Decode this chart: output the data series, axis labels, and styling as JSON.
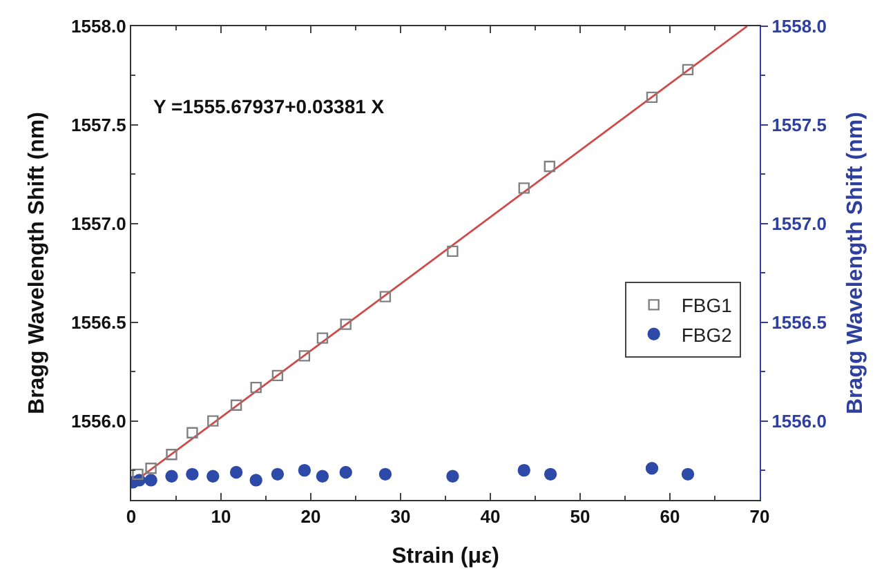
{
  "chart_data": {
    "type": "scatter",
    "xlabel": "Strain (με)",
    "ylabel": "Bragg Wavelength Shift (nm)",
    "y2label": "Bragg Wavelength Shift (nm)",
    "xlim": [
      0,
      70
    ],
    "xticks": [
      0,
      10,
      20,
      30,
      40,
      50,
      60,
      70
    ],
    "ylim": [
      1555.6,
      1558.0
    ],
    "yticks": [
      {
        "value": 1556.0,
        "label": "1556.0"
      },
      {
        "value": 1556.5,
        "label": "1556.5"
      },
      {
        "value": 1557.0,
        "label": "1557.0"
      },
      {
        "value": 1557.5,
        "label": "1557.5"
      },
      {
        "value": 1558.0,
        "label": "1558.0"
      }
    ],
    "y2lim": [
      1555.6,
      1558.0
    ],
    "y2ticks": [
      {
        "value": 1556.0,
        "label": "1556.0"
      },
      {
        "value": 1556.5,
        "label": "1556.5"
      },
      {
        "value": 1557.0,
        "label": "1557.0"
      },
      {
        "value": 1557.5,
        "label": "1557.5"
      },
      {
        "value": 1558.0,
        "label": "1558.0"
      }
    ],
    "legend": "right",
    "annotations": [
      "Y =1555.67937+0.03381 X"
    ],
    "series": [
      {
        "name": "FBG1",
        "marker": "square",
        "color": "#808080",
        "x": [
          0.73,
          2.2,
          4.5,
          6.8,
          9.1,
          11.7,
          13.9,
          16.3,
          19.3,
          21.3,
          23.9,
          28.3,
          35.8,
          43.75,
          46.6,
          58.0,
          62.0
        ],
        "values": [
          1555.73,
          1555.76,
          1555.83,
          1555.94,
          1556.0,
          1556.08,
          1556.17,
          1556.23,
          1556.33,
          1556.42,
          1556.49,
          1556.63,
          1556.86,
          1557.18,
          1557.29,
          1557.64,
          1557.78
        ]
      },
      {
        "name": "FBG2",
        "marker": "circle",
        "color": "#2e4aa8",
        "x": [
          0.2,
          0.9,
          2.2,
          4.5,
          6.8,
          9.1,
          11.7,
          13.9,
          16.3,
          19.3,
          21.3,
          23.9,
          28.3,
          35.8,
          43.75,
          46.7,
          58.0,
          62.0
        ],
        "values": [
          1555.69,
          1555.7,
          1555.7,
          1555.72,
          1555.73,
          1555.72,
          1555.74,
          1555.7,
          1555.73,
          1555.75,
          1555.72,
          1555.74,
          1555.73,
          1555.72,
          1555.75,
          1555.73,
          1555.76,
          1555.73
        ]
      },
      {
        "type": "line",
        "line_style": "solid",
        "marker": "none",
        "color": "#d04a4a",
        "x": [
          0,
          68.6
        ],
        "values": [
          1555.68,
          1558.0
        ]
      }
    ]
  }
}
